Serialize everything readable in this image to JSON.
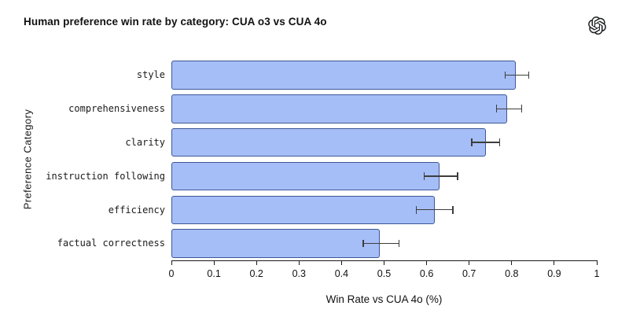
{
  "header": {
    "logo_icon": "openai-logo"
  },
  "chart_data": {
    "type": "bar",
    "orientation": "horizontal",
    "title": "Human preference win rate by category: CUA o3 vs CUA 4o",
    "categories": [
      "style",
      "comprehensiveness",
      "clarity",
      "instruction following",
      "efficiency",
      "factual correctness"
    ],
    "values": [
      0.81,
      0.79,
      0.74,
      0.63,
      0.62,
      0.49
    ],
    "error_low": [
      0.785,
      0.764,
      0.706,
      0.594,
      0.576,
      0.451
    ],
    "error_high": [
      0.84,
      0.824,
      0.772,
      0.673,
      0.662,
      0.535
    ],
    "xlabel": "Win Rate vs CUA 4o (%)",
    "ylabel": "Preference Category",
    "xlim": [
      0,
      1
    ],
    "xticks": [
      0,
      0.1,
      0.2,
      0.3,
      0.4,
      0.5,
      0.6,
      0.7,
      0.8,
      0.9,
      1
    ],
    "xtick_labels": [
      "0",
      "0.1",
      "0.2",
      "0.3",
      "0.4",
      "0.5",
      "0.6",
      "0.7",
      "0.8",
      "0.9",
      "1"
    ],
    "grid": false,
    "legend": false,
    "colors": {
      "bar_fill": "#a6bef7",
      "bar_border": "#3c5795",
      "error_bar": "#3d3d3d",
      "axis": "#1a1a1a",
      "text": "#1a1a1a"
    }
  }
}
